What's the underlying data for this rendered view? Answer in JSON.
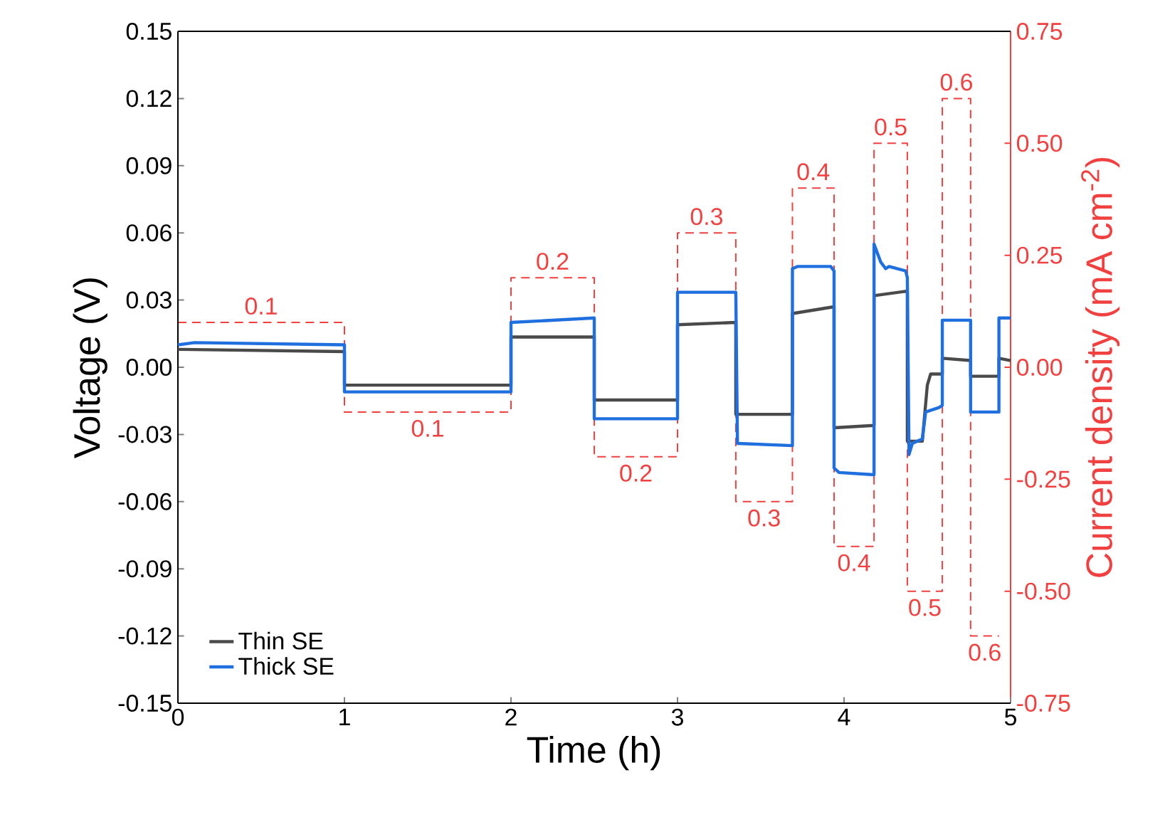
{
  "chart_data": {
    "type": "line",
    "xlabel": "Time (h)",
    "ylabel": "Voltage (V)",
    "y2label": "Current density (mA cm$^{-2}$)",
    "xlim": [
      0,
      5
    ],
    "xticks": [
      0,
      1,
      2,
      3,
      4,
      5
    ],
    "ylim": [
      -0.15,
      0.15
    ],
    "yticks": [
      -0.15,
      -0.12,
      -0.09,
      -0.06,
      -0.03,
      {
        "value": 0,
        "label": "0.00"
      },
      0.03,
      0.06,
      0.09,
      0.12,
      0.15
    ],
    "y2lim": [
      -0.75,
      0.75
    ],
    "y2ticks": [
      -0.75,
      {
        "value": -0.5,
        "label": "-0.50"
      },
      -0.25,
      {
        "value": 0,
        "label": "0.00"
      },
      0.25,
      {
        "value": 0.5,
        "label": "0.50"
      },
      0.75
    ],
    "legend": "bottom left",
    "grid": false,
    "series": [
      {
        "name": "Thin SE",
        "color": "#4a4a4a",
        "x": [
          0,
          1,
          1,
          2,
          2,
          2.5,
          2.5,
          3,
          3,
          3.35,
          3.35,
          3.69,
          3.69,
          3.94,
          3.94,
          4.18,
          4.18,
          4.38,
          4.38,
          4.47,
          4.5,
          4.52,
          4.59,
          4.59,
          4.76,
          4.76,
          4.93,
          4.93,
          5
        ],
        "values": [
          0.008,
          0.007,
          -0.008,
          -0.008,
          0.0135,
          0.0135,
          -0.0146,
          -0.0146,
          0.019,
          0.02,
          -0.021,
          -0.021,
          0.024,
          0.027,
          -0.027,
          -0.026,
          0.032,
          0.034,
          -0.033,
          -0.033,
          -0.008,
          -0.003,
          -0.003,
          0.004,
          0.003,
          -0.004,
          -0.004,
          0.004,
          0.003
        ]
      },
      {
        "name": "Thick SE",
        "color": "#1f6fdf",
        "x": [
          0,
          0.1,
          1,
          1,
          2,
          2,
          2.5,
          2.5,
          3,
          3,
          3.35,
          3.36,
          3.69,
          3.69,
          3.72,
          3.92,
          3.94,
          3.94,
          3.97,
          4.18,
          4.18,
          4.22,
          4.25,
          4.27,
          4.37,
          4.38,
          4.39,
          4.41,
          4.47,
          4.49,
          4.57,
          4.59,
          4.59,
          4.76,
          4.76,
          4.93,
          4.93,
          5
        ],
        "values": [
          0.01,
          0.011,
          0.01,
          -0.011,
          -0.011,
          0.02,
          0.022,
          -0.023,
          -0.023,
          0.0335,
          0.0335,
          -0.034,
          -0.035,
          0.044,
          0.045,
          0.045,
          0.043,
          -0.045,
          -0.047,
          -0.048,
          0.055,
          0.047,
          0.044,
          0.045,
          0.043,
          0.04,
          -0.039,
          -0.034,
          -0.032,
          -0.02,
          -0.018,
          -0.017,
          0.021,
          0.021,
          -0.02,
          -0.02,
          0.022,
          0.022
        ]
      },
      {
        "type": "step",
        "axis": "y2",
        "line_style": "dashed",
        "color": "#f04040",
        "x": [
          0,
          1,
          2,
          2.5,
          3,
          3.35,
          3.69,
          3.94,
          4.18,
          4.38,
          4.59,
          4.76,
          4.93
        ],
        "values": [
          0.1,
          -0.1,
          0.2,
          -0.2,
          0.3,
          -0.3,
          0.4,
          -0.4,
          0.5,
          -0.5,
          0.6,
          -0.6,
          -0.6
        ]
      }
    ],
    "annotations": [
      "0.1",
      "0.1",
      "0.2",
      "0.2",
      "0.3",
      "0.3",
      "0.4",
      "0.4",
      "0.5",
      "0.5",
      "0.6",
      "0.6"
    ]
  }
}
